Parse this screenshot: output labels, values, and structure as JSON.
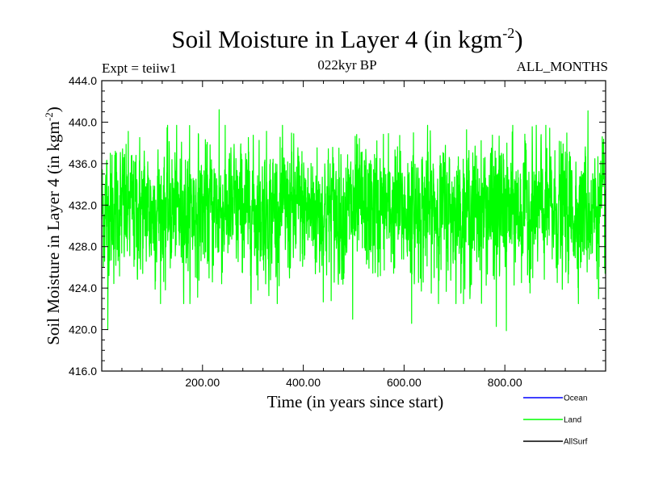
{
  "chart_data": {
    "type": "line",
    "title_main": "Soil Moisture in Layer 4 (in kgm",
    "title_exp": "-2",
    "title_close": ")",
    "subtitle_left": "Expt = teiiw1",
    "subtitle_center": "022kyr BP",
    "subtitle_right": "ALL_MONTHS",
    "xlabel": "Time (in years since start)",
    "ylabel_main": "Soil Moisture in Layer 4 (in kgm",
    "ylabel_exp": "-2",
    "ylabel_close": ")",
    "xlim": [
      0,
      1000
    ],
    "ylim": [
      416.0,
      444.0
    ],
    "x_ticks": [
      200,
      400,
      600,
      800
    ],
    "x_tick_labels": [
      "200.00",
      "400.00",
      "600.00",
      "800.00"
    ],
    "y_ticks": [
      416,
      420,
      424,
      428,
      432,
      436,
      440,
      444
    ],
    "y_tick_labels": [
      "416.0",
      "420.0",
      "424.0",
      "428.0",
      "432.0",
      "436.0",
      "440.0",
      "444.0"
    ],
    "series": [
      {
        "name": "Ocean",
        "color": "#0000ff",
        "values": []
      },
      {
        "name": "Land",
        "color": "#00ff00",
        "summary": {
          "approx_mean": 431.5,
          "approx_min": 420.0,
          "approx_max": 441.2
        },
        "extremes": [
          {
            "x": 12,
            "y": 420.0
          },
          {
            "x": 233,
            "y": 441.2
          },
          {
            "x": 498,
            "y": 421.0
          },
          {
            "x": 615,
            "y": 420.6
          },
          {
            "x": 783,
            "y": 420.3
          },
          {
            "x": 803,
            "y": 419.9
          },
          {
            "x": 965,
            "y": 441.1
          }
        ]
      },
      {
        "name": "AllSurf",
        "color": "#000000",
        "values": []
      }
    ],
    "legend_placement": "bottom-right",
    "grid": false
  }
}
